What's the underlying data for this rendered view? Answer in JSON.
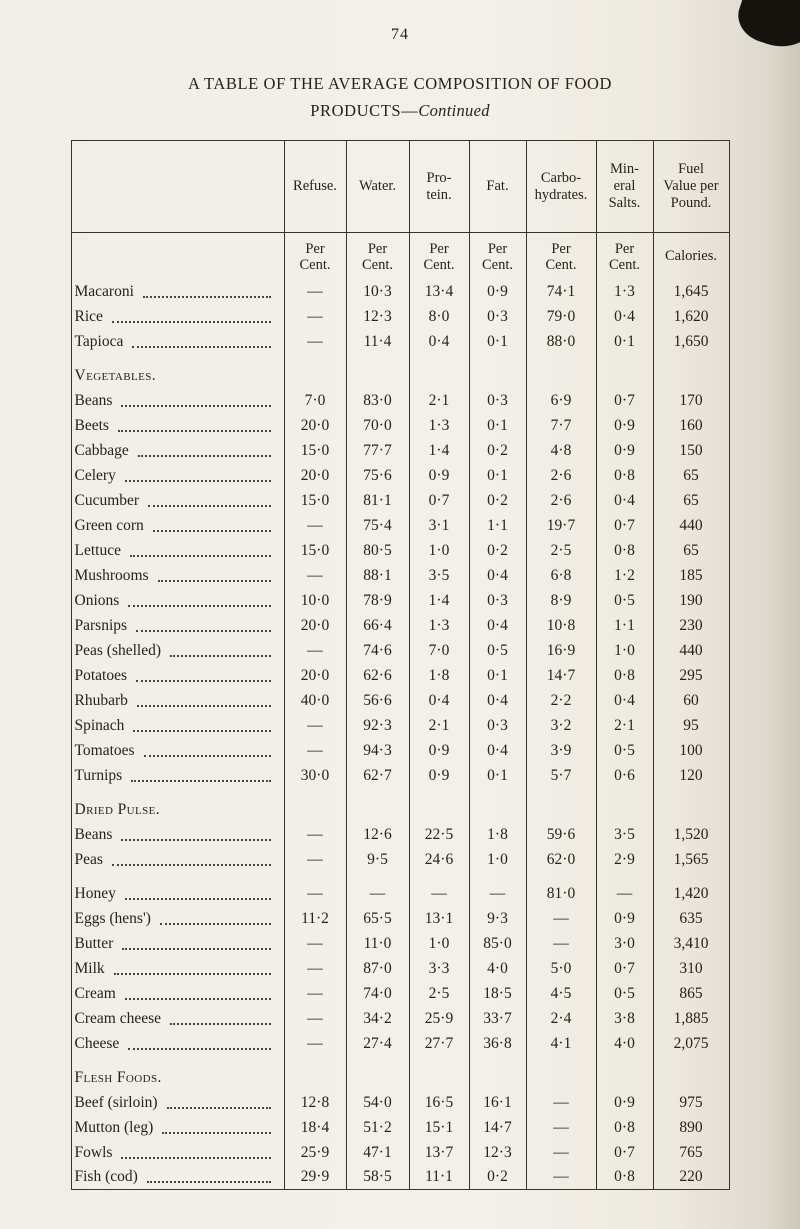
{
  "page": {
    "number": "74",
    "title_line1": "A TABLE OF THE AVERAGE COMPOSITION OF FOOD",
    "title_line2_prefix": "PRODUCTS—",
    "title_line2_continued": "Continued"
  },
  "table": {
    "columns": [
      "",
      "Refuse.",
      "Water.",
      "Pro-\ntein.",
      "Fat.",
      "Carbo-\nhydrates.",
      "Min-\neral\nSalts.",
      "Fuel\nValue per\nPound."
    ],
    "subheaders": [
      "",
      "Per\nCent.",
      "Per\nCent.",
      "Per\nCent.",
      "Per\nCent.",
      "Per\nCent.",
      "Per\nCent.",
      "Calories."
    ],
    "sections": [
      {
        "header": "",
        "gap": false,
        "rows": [
          {
            "name": "Macaroni",
            "values": [
              "—",
              "10·3",
              "13·4",
              "0·9",
              "74·1",
              "1·3",
              "1,645"
            ]
          },
          {
            "name": "Rice",
            "values": [
              "—",
              "12·3",
              "8·0",
              "0·3",
              "79·0",
              "0·4",
              "1,620"
            ]
          },
          {
            "name": "Tapioca",
            "values": [
              "—",
              "11·4",
              "0·4",
              "0·1",
              "88·0",
              "0·1",
              "1,650"
            ]
          }
        ]
      },
      {
        "header": "Vegetables.",
        "gap": true,
        "rows": [
          {
            "name": "Beans",
            "values": [
              "7·0",
              "83·0",
              "2·1",
              "0·3",
              "6·9",
              "0·7",
              "170"
            ]
          },
          {
            "name": "Beets",
            "values": [
              "20·0",
              "70·0",
              "1·3",
              "0·1",
              "7·7",
              "0·9",
              "160"
            ]
          },
          {
            "name": "Cabbage",
            "values": [
              "15·0",
              "77·7",
              "1·4",
              "0·2",
              "4·8",
              "0·9",
              "150"
            ]
          },
          {
            "name": "Celery",
            "values": [
              "20·0",
              "75·6",
              "0·9",
              "0·1",
              "2·6",
              "0·8",
              "65"
            ]
          },
          {
            "name": "Cucumber",
            "values": [
              "15·0",
              "81·1",
              "0·7",
              "0·2",
              "2·6",
              "0·4",
              "65"
            ]
          },
          {
            "name": "Green corn",
            "values": [
              "—",
              "75·4",
              "3·1",
              "1·1",
              "19·7",
              "0·7",
              "440"
            ]
          },
          {
            "name": "Lettuce",
            "values": [
              "15·0",
              "80·5",
              "1·0",
              "0·2",
              "2·5",
              "0·8",
              "65"
            ]
          },
          {
            "name": "Mushrooms",
            "values": [
              "—",
              "88·1",
              "3·5",
              "0·4",
              "6·8",
              "1·2",
              "185"
            ]
          },
          {
            "name": "Onions",
            "values": [
              "10·0",
              "78·9",
              "1·4",
              "0·3",
              "8·9",
              "0·5",
              "190"
            ]
          },
          {
            "name": "Parsnips",
            "values": [
              "20·0",
              "66·4",
              "1·3",
              "0·4",
              "10·8",
              "1·1",
              "230"
            ]
          },
          {
            "name": "Peas (shelled)",
            "values": [
              "—",
              "74·6",
              "7·0",
              "0·5",
              "16·9",
              "1·0",
              "440"
            ]
          },
          {
            "name": "Potatoes",
            "values": [
              "20·0",
              "62·6",
              "1·8",
              "0·1",
              "14·7",
              "0·8",
              "295"
            ]
          },
          {
            "name": "Rhubarb",
            "values": [
              "40·0",
              "56·6",
              "0·4",
              "0·4",
              "2·2",
              "0·4",
              "60"
            ]
          },
          {
            "name": "Spinach",
            "values": [
              "—",
              "92·3",
              "2·1",
              "0·3",
              "3·2",
              "2·1",
              "95"
            ]
          },
          {
            "name": "Tomatoes",
            "values": [
              "—",
              "94·3",
              "0·9",
              "0·4",
              "3·9",
              "0·5",
              "100"
            ]
          },
          {
            "name": "Turnips",
            "values": [
              "30·0",
              "62·7",
              "0·9",
              "0·1",
              "5·7",
              "0·6",
              "120"
            ]
          }
        ]
      },
      {
        "header": "Dried Pulse.",
        "gap": true,
        "rows": [
          {
            "name": "Beans",
            "values": [
              "—",
              "12·6",
              "22·5",
              "1·8",
              "59·6",
              "3·5",
              "1,520"
            ]
          },
          {
            "name": "Peas",
            "values": [
              "—",
              "9·5",
              "24·6",
              "1·0",
              "62·0",
              "2·9",
              "1,565"
            ]
          }
        ]
      },
      {
        "header": "",
        "gap": true,
        "rows": [
          {
            "name": "Honey",
            "values": [
              "—",
              "—",
              "—",
              "—",
              "81·0",
              "—",
              "1,420"
            ]
          },
          {
            "name": "Eggs (hens')",
            "values": [
              "11·2",
              "65·5",
              "13·1",
              "9·3",
              "—",
              "0·9",
              "635"
            ]
          },
          {
            "name": "Butter",
            "values": [
              "—",
              "11·0",
              "1·0",
              "85·0",
              "—",
              "3·0",
              "3,410"
            ]
          },
          {
            "name": "Milk",
            "values": [
              "—",
              "87·0",
              "3·3",
              "4·0",
              "5·0",
              "0·7",
              "310"
            ]
          },
          {
            "name": "Cream",
            "values": [
              "—",
              "74·0",
              "2·5",
              "18·5",
              "4·5",
              "0·5",
              "865"
            ]
          },
          {
            "name": "Cream cheese",
            "values": [
              "—",
              "34·2",
              "25·9",
              "33·7",
              "2·4",
              "3·8",
              "1,885"
            ]
          },
          {
            "name": "Cheese",
            "values": [
              "—",
              "27·4",
              "27·7",
              "36·8",
              "4·1",
              "4·0",
              "2,075"
            ]
          }
        ]
      },
      {
        "header": "Flesh Foods.",
        "gap": true,
        "rows": [
          {
            "name": "Beef (sirloin)",
            "values": [
              "12·8",
              "54·0",
              "16·5",
              "16·1",
              "—",
              "0·9",
              "975"
            ]
          },
          {
            "name": "Mutton (leg)",
            "values": [
              "18·4",
              "51·2",
              "15·1",
              "14·7",
              "—",
              "0·8",
              "890"
            ]
          },
          {
            "name": "Fowls",
            "values": [
              "25·9",
              "47·1",
              "13·7",
              "12·3",
              "—",
              "0·7",
              "765"
            ]
          },
          {
            "name": "Fish (cod)",
            "values": [
              "29·9",
              "58·5",
              "11·1",
              "0·2",
              "—",
              "0·8",
              "220"
            ]
          }
        ]
      }
    ]
  }
}
